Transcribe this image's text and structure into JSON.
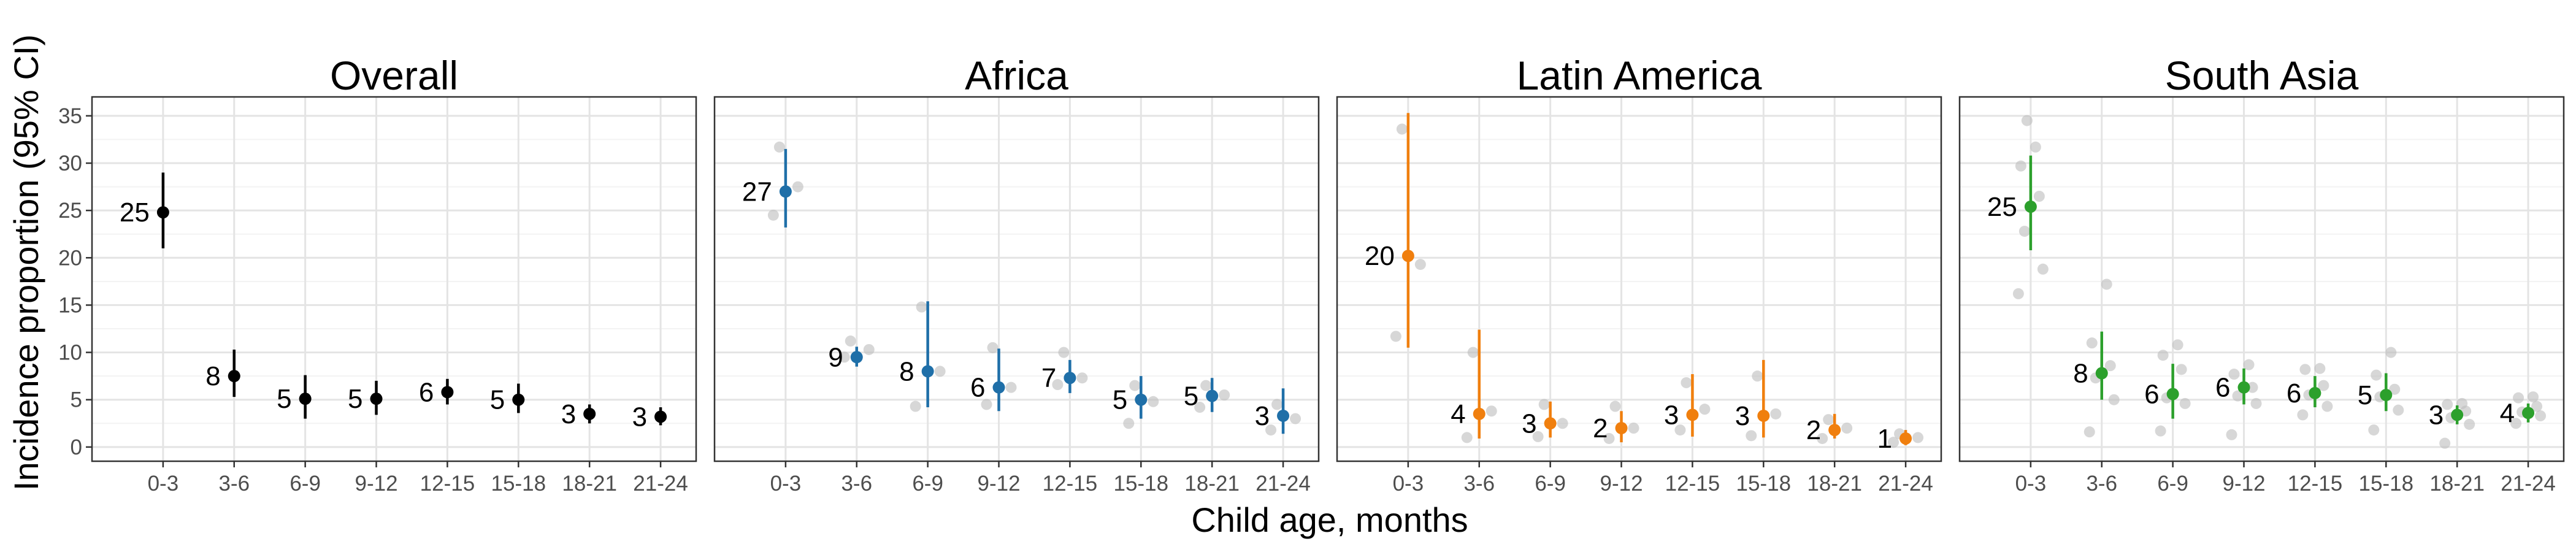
{
  "figure": {
    "ylabel": "Incidence proportion (95% CI)",
    "xlabel": "Child age, months"
  },
  "chart_data": [
    {
      "type": "scatter",
      "title": "Overall",
      "color": "#000000",
      "categories": [
        "0-3",
        "3-6",
        "6-9",
        "9-12",
        "12-15",
        "15-18",
        "18-21",
        "21-24"
      ],
      "ylim": [
        -1.5,
        37
      ],
      "yticks": [
        0,
        5,
        10,
        15,
        20,
        25,
        30,
        35
      ],
      "grid": true,
      "estimates": [
        24.8,
        7.5,
        5.1,
        5.1,
        5.8,
        5.0,
        3.5,
        3.2
      ],
      "lower": [
        21.0,
        5.3,
        3.0,
        3.4,
        4.5,
        3.6,
        2.5,
        2.3
      ],
      "upper": [
        29.0,
        10.3,
        7.6,
        7.0,
        7.2,
        6.7,
        4.5,
        4.2
      ],
      "labels": [
        "25",
        "8",
        "5",
        "5",
        "6",
        "5",
        "3",
        "3"
      ],
      "studies": [
        [],
        [],
        [],
        [],
        [],
        [],
        [],
        []
      ]
    },
    {
      "type": "scatter",
      "title": "Africa",
      "color": "#1f6fa8",
      "categories": [
        "0-3",
        "3-6",
        "6-9",
        "9-12",
        "12-15",
        "15-18",
        "18-21",
        "21-24"
      ],
      "ylim": [
        -1.5,
        37
      ],
      "yticks": [
        0,
        5,
        10,
        15,
        20,
        25,
        30,
        35
      ],
      "grid": true,
      "estimates": [
        27.0,
        9.5,
        8.0,
        6.3,
        7.3,
        5.0,
        5.4,
        3.3
      ],
      "lower": [
        23.2,
        8.5,
        4.2,
        3.8,
        5.7,
        3.0,
        3.7,
        1.4
      ],
      "upper": [
        31.5,
        10.6,
        15.4,
        10.4,
        9.2,
        7.5,
        7.3,
        6.2
      ],
      "labels": [
        "27",
        "9",
        "8",
        "6",
        "7",
        "5",
        "5",
        "3"
      ],
      "studies": [
        [
          24.5,
          27.5,
          31.7
        ],
        [
          9.5,
          10.3,
          11.2
        ],
        [
          4.3,
          8.0,
          14.8
        ],
        [
          4.5,
          6.3,
          10.5
        ],
        [
          6.6,
          7.3,
          10.0
        ],
        [
          2.5,
          4.8,
          6.5
        ],
        [
          4.2,
          5.5,
          6.5
        ],
        [
          1.8,
          3.0,
          4.5
        ]
      ]
    },
    {
      "type": "scatter",
      "title": "Latin America",
      "color": "#f07f0e",
      "categories": [
        "0-3",
        "3-6",
        "6-9",
        "9-12",
        "12-15",
        "15-18",
        "18-21",
        "21-24"
      ],
      "ylim": [
        -1.5,
        37
      ],
      "yticks": [
        0,
        5,
        10,
        15,
        20,
        25,
        30,
        35
      ],
      "grid": true,
      "estimates": [
        20.2,
        3.5,
        2.5,
        2.0,
        3.4,
        3.3,
        1.8,
        0.9
      ],
      "lower": [
        10.5,
        0.9,
        1.0,
        0.5,
        1.1,
        1.0,
        0.9,
        0.2
      ],
      "upper": [
        35.3,
        12.4,
        4.8,
        3.8,
        7.7,
        9.2,
        3.5,
        1.8
      ],
      "labels": [
        "20",
        "4",
        "3",
        "2",
        "3",
        "3",
        "2",
        "1"
      ],
      "studies": [
        [
          11.7,
          19.3,
          33.6
        ],
        [
          1.0,
          3.8,
          10.0
        ],
        [
          1.1,
          2.5,
          4.5
        ],
        [
          0.9,
          2.0,
          4.3
        ],
        [
          1.8,
          4.0,
          6.8
        ],
        [
          1.2,
          3.5,
          7.5
        ],
        [
          0.9,
          2.0,
          2.9
        ],
        [
          0.5,
          1.0,
          1.4
        ]
      ]
    },
    {
      "type": "scatter",
      "title": "South Asia",
      "color": "#2ca02c",
      "categories": [
        "0-3",
        "3-6",
        "6-9",
        "9-12",
        "12-15",
        "15-18",
        "18-21",
        "21-24"
      ],
      "ylim": [
        -1.5,
        37
      ],
      "yticks": [
        0,
        5,
        10,
        15,
        20,
        25,
        30,
        35
      ],
      "grid": true,
      "estimates": [
        25.4,
        7.8,
        5.6,
        6.3,
        5.7,
        5.5,
        3.4,
        3.6
      ],
      "lower": [
        20.8,
        5.0,
        3.0,
        4.5,
        4.2,
        3.8,
        2.4,
        2.6
      ],
      "upper": [
        30.8,
        12.2,
        8.8,
        8.3,
        7.5,
        7.8,
        4.4,
        4.6
      ],
      "labels": [
        "25",
        "8",
        "6",
        "6",
        "6",
        "5",
        "3",
        "4"
      ],
      "studies": [
        [
          16.2,
          18.8,
          22.8,
          26.5,
          29.7,
          31.7,
          34.5
        ],
        [
          1.6,
          5.0,
          7.3,
          8.6,
          11.0,
          17.2
        ],
        [
          1.7,
          4.6,
          5.2,
          8.2,
          9.7,
          10.8
        ],
        [
          1.3,
          4.6,
          5.4,
          6.3,
          7.7,
          8.7
        ],
        [
          3.4,
          4.3,
          5.5,
          6.5,
          8.2,
          8.3
        ],
        [
          1.8,
          3.9,
          5.3,
          6.1,
          7.6,
          10.0
        ],
        [
          0.4,
          2.4,
          3.1,
          3.8,
          4.5,
          4.6
        ],
        [
          2.5,
          3.3,
          3.7,
          4.3,
          5.2,
          5.3
        ]
      ]
    }
  ]
}
